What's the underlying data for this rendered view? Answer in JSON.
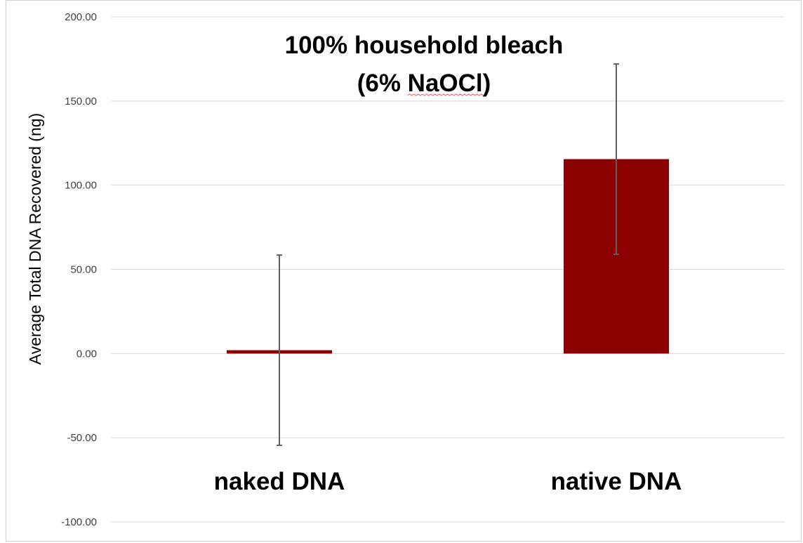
{
  "chart_data": {
    "type": "bar",
    "title_lines": [
      "100% household bleach",
      "(6% NaOCl)"
    ],
    "ylabel": "Average Total DNA Recovered (ng)",
    "xlabel": "",
    "categories": [
      "naked DNA",
      "native DNA"
    ],
    "values": [
      2.0,
      115.5
    ],
    "error_low": [
      -54.5,
      59.0
    ],
    "error_high": [
      58.5,
      172.0
    ],
    "ylim": [
      -100,
      200
    ],
    "yticks": [
      "-100.00",
      "-50.00",
      "0.00",
      "50.00",
      "100.00",
      "150.00",
      "200.00"
    ],
    "grid": true,
    "bar_color": "#8b0000",
    "error_bar_color": "#606060",
    "grid_color": "#d9d9d9"
  }
}
